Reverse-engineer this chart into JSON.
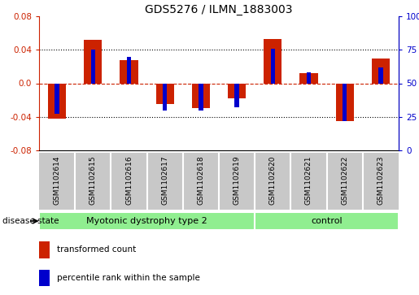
{
  "title": "GDS5276 / ILMN_1883003",
  "samples": [
    "GSM1102614",
    "GSM1102615",
    "GSM1102616",
    "GSM1102617",
    "GSM1102618",
    "GSM1102619",
    "GSM1102620",
    "GSM1102621",
    "GSM1102622",
    "GSM1102623"
  ],
  "red_values": [
    -0.042,
    0.052,
    0.028,
    -0.025,
    -0.03,
    -0.018,
    0.053,
    0.012,
    -0.045,
    0.03
  ],
  "blue_values_pct": [
    27,
    75,
    70,
    30,
    30,
    32,
    76,
    58,
    22,
    62
  ],
  "disease_groups": [
    {
      "label": "Myotonic dystrophy type 2",
      "start": 0,
      "end": 6,
      "color": "#90EE90"
    },
    {
      "label": "control",
      "start": 6,
      "end": 10,
      "color": "#90EE90"
    }
  ],
  "ylim": [
    -0.08,
    0.08
  ],
  "yticks_left": [
    -0.08,
    -0.04,
    0.0,
    0.04,
    0.08
  ],
  "yticks_right_labels": [
    "0",
    "25",
    "50",
    "75",
    "100%"
  ],
  "red_color": "#CC2200",
  "blue_color": "#0000CC",
  "label_bg_color": "#C8C8C8",
  "label_border_color": "#AAAAAA",
  "legend_labels": [
    "transformed count",
    "percentile rank within the sample"
  ],
  "disease_state_text": "disease state",
  "n_disease": 6,
  "n_control": 4
}
